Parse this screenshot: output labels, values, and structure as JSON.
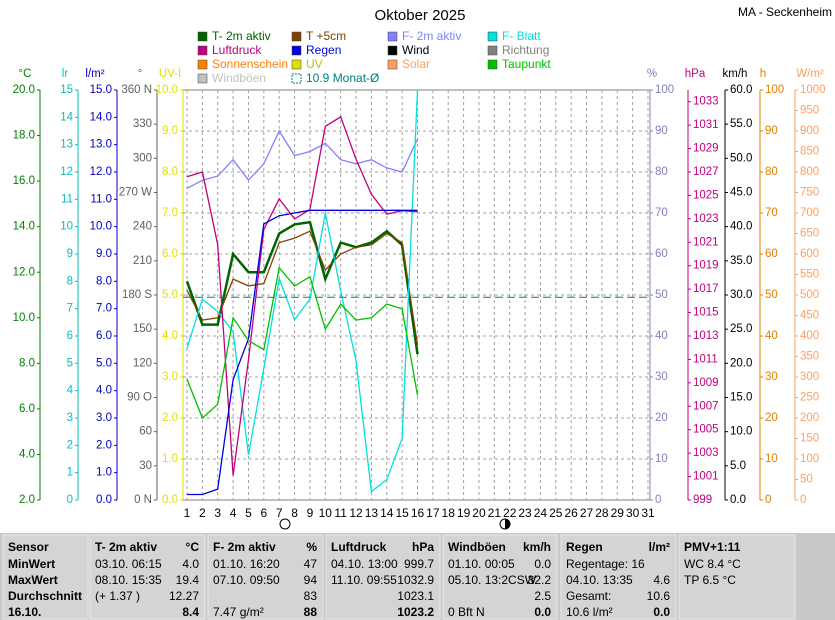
{
  "chart_data": {
    "type": "line",
    "title": "Oktober 2025",
    "subtitle": "MA - Seckenheim",
    "x": [
      1,
      2,
      3,
      4,
      5,
      6,
      7,
      8,
      9,
      10,
      11,
      12,
      13,
      14,
      15,
      16
    ],
    "xlim": [
      1,
      31
    ],
    "xticks": [
      1,
      2,
      3,
      4,
      5,
      6,
      7,
      8,
      9,
      10,
      11,
      12,
      13,
      14,
      15,
      16,
      17,
      18,
      19,
      20,
      21,
      22,
      23,
      24,
      25,
      26,
      27,
      28,
      29,
      30,
      31
    ],
    "grid": true,
    "axes": [
      {
        "label": "°C",
        "color": "#008000",
        "lim": [
          2,
          20
        ],
        "ticks": [
          {
            "value": 2,
            "label": "2.0"
          },
          {
            "value": 4,
            "label": "4.0"
          },
          {
            "value": 6,
            "label": "6.0"
          },
          {
            "value": 8,
            "label": "8.0"
          },
          {
            "value": 10,
            "label": "10.0"
          },
          {
            "value": 12,
            "label": "12.0"
          },
          {
            "value": 14,
            "label": "14.0"
          },
          {
            "value": 16,
            "label": "16.0"
          },
          {
            "value": 18,
            "label": "18.0"
          },
          {
            "value": 20,
            "label": "20.0"
          }
        ]
      },
      {
        "label": "lr",
        "color": "#00c0c0",
        "lim": [
          0,
          15
        ],
        "ticks": [
          0,
          1,
          2,
          3,
          4,
          5,
          6,
          7,
          8,
          9,
          10,
          11,
          12,
          13,
          14,
          15
        ]
      },
      {
        "label": "l/m²",
        "color": "#0000c0",
        "lim": [
          0,
          15
        ],
        "ticks": [
          {
            "value": 0,
            "label": "0.0"
          },
          {
            "value": 1,
            "label": "1.0"
          },
          {
            "value": 2,
            "label": "2.0"
          },
          {
            "value": 3,
            "label": "3.0"
          },
          {
            "value": 4,
            "label": "4.0"
          },
          {
            "value": 5,
            "label": "5.0"
          },
          {
            "value": 6,
            "label": "6.0"
          },
          {
            "value": 7,
            "label": "7.0"
          },
          {
            "value": 8,
            "label": "8.0"
          },
          {
            "value": 9,
            "label": "9.0"
          },
          {
            "value": 10,
            "label": "10.0"
          },
          {
            "value": 11,
            "label": "11.0"
          },
          {
            "value": 12,
            "label": "12.0"
          },
          {
            "value": 13,
            "label": "13.0"
          },
          {
            "value": 14,
            "label": "14.0"
          },
          {
            "value": 15,
            "label": "15.0"
          }
        ]
      },
      {
        "label": "°",
        "color": "#606060",
        "lim": [
          0,
          360
        ],
        "ticks": [
          {
            "value": 0,
            "label": "0 N"
          },
          30,
          60,
          {
            "value": 90,
            "label": "90 O"
          },
          120,
          150,
          {
            "value": 180,
            "label": "180 S"
          },
          210,
          240,
          {
            "value": 270,
            "label": "270 W"
          },
          300,
          330,
          {
            "value": 360,
            "label": "360 N"
          }
        ]
      },
      {
        "label": "UV-I",
        "color": "#e0e000",
        "lim": [
          0,
          10
        ],
        "ticks": [
          {
            "value": 0,
            "label": "0.0"
          },
          {
            "value": 1,
            "label": "1.0"
          },
          {
            "value": 2,
            "label": "2.0"
          },
          {
            "value": 3,
            "label": "3.0"
          },
          {
            "value": 4,
            "label": "4.0"
          },
          {
            "value": 5,
            "label": "5.0"
          },
          {
            "value": 6,
            "label": "6.0"
          },
          {
            "value": 7,
            "label": "7.0"
          },
          {
            "value": 8,
            "label": "8.0"
          },
          {
            "value": 9,
            "label": "9.0"
          },
          {
            "value": 10,
            "label": "10.0"
          }
        ]
      },
      {
        "label": "%",
        "color": "#8080c0",
        "lim": [
          0,
          100
        ],
        "ticks": [
          0,
          10,
          20,
          30,
          40,
          50,
          60,
          70,
          80,
          90,
          100
        ]
      },
      {
        "label": "hPa",
        "color": "#c00080",
        "lim": [
          999,
          1034
        ],
        "ticks": [
          999,
          1001,
          1003,
          1005,
          1007,
          1009,
          1011,
          1013,
          1015,
          1017,
          1019,
          1021,
          1023,
          1025,
          1027,
          1029,
          1031,
          1033
        ]
      },
      {
        "label": "km/h",
        "color": "#000000",
        "lim": [
          0,
          60
        ],
        "ticks": [
          {
            "value": 0,
            "label": "0.0"
          },
          {
            "value": 5,
            "label": "5.0"
          },
          {
            "value": 10,
            "label": "10.0"
          },
          {
            "value": 15,
            "label": "15.0"
          },
          {
            "value": 20,
            "label": "20.0"
          },
          {
            "value": 25,
            "label": "25.0"
          },
          {
            "value": 30,
            "label": "30.0"
          },
          {
            "value": 35,
            "label": "35.0"
          },
          {
            "value": 40,
            "label": "40.0"
          },
          {
            "value": 45,
            "label": "45.0"
          },
          {
            "value": 50,
            "label": "50.0"
          },
          {
            "value": 55,
            "label": "55.0"
          },
          {
            "value": 60,
            "label": "60.0"
          }
        ]
      },
      {
        "label": "h",
        "color": "#e08000",
        "lim": [
          0,
          100
        ],
        "ticks": [
          0,
          10,
          20,
          30,
          40,
          50,
          60,
          70,
          80,
          90,
          100
        ]
      },
      {
        "label": "W/m²",
        "color": "#ffa060",
        "lim": [
          0,
          1000
        ],
        "ticks": [
          0,
          50,
          100,
          150,
          200,
          250,
          300,
          350,
          400,
          450,
          500,
          550,
          600,
          650,
          700,
          750,
          800,
          850,
          900,
          950,
          1000
        ]
      }
    ],
    "series": [
      {
        "name": "T- 2m aktiv",
        "color": "#006400",
        "axis": 0,
        "values": [
          11.6,
          9.7,
          9.7,
          12.8,
          12.0,
          12.0,
          13.7,
          14.1,
          14.2,
          11.7,
          13.3,
          13.1,
          13.3,
          13.8,
          13.2,
          8.4
        ]
      },
      {
        "name": "T +5cm",
        "color": "#804000",
        "axis": 0,
        "values": [
          11.2,
          9.9,
          10.0,
          11.7,
          11.4,
          11.5,
          13.3,
          13.5,
          13.8,
          12.1,
          12.8,
          13.1,
          13.2,
          13.7,
          13.3,
          8.8
        ]
      },
      {
        "name": "F- 2m aktiv",
        "color": "#8080ff",
        "axis": 5,
        "values": [
          76,
          78,
          79,
          83,
          78,
          82,
          90,
          84,
          85,
          87,
          83,
          82,
          83,
          81,
          80,
          88
        ]
      },
      {
        "name": "F- Blatt",
        "color": "#00e0e0",
        "axis": 5,
        "values": [
          37,
          49,
          46,
          41,
          11,
          32,
          54,
          44,
          49,
          70,
          51,
          34,
          2,
          5,
          15,
          100
        ]
      },
      {
        "name": "Luftdruck",
        "color": "#c00080",
        "axis": 6,
        "values": [
          1026.6,
          1027.0,
          1020.8,
          1001.1,
          1011.0,
          1022.1,
          1024.7,
          1023.0,
          1023.8,
          1030.9,
          1031.7,
          1028.1,
          1025.1,
          1023.4,
          1023.7,
          1023.6
        ]
      },
      {
        "name": "Regen",
        "color": "#0000e0",
        "axis": 2,
        "values": [
          0.2,
          0.2,
          0.4,
          4.4,
          5.9,
          10.1,
          10.4,
          10.5,
          10.6,
          10.6,
          10.6,
          10.6,
          10.6,
          10.6,
          10.6,
          10.6
        ]
      },
      {
        "name": "Wind",
        "color": "#000000"
      },
      {
        "name": "Richtung",
        "color": "#808080"
      },
      {
        "name": "Sonnenschein",
        "color": "#ff8000"
      },
      {
        "name": "UV",
        "color": "#e0e000"
      },
      {
        "name": "Solar",
        "color": "#ffa060"
      },
      {
        "name": "Taupunkt",
        "color": "#00c000",
        "axis": 0,
        "values": [
          7.3,
          5.6,
          6.2,
          10.0,
          9.0,
          8.6,
          12.2,
          11.4,
          11.8,
          9.5,
          10.6,
          9.9,
          10.0,
          10.6,
          10.4,
          6.6
        ]
      },
      {
        "name": "Windböen",
        "color": "#c0c0c0"
      },
      {
        "name": "10.9 Monat-Ø",
        "color": "#008080",
        "axis": 0,
        "value": 10.9
      }
    ]
  },
  "table": {
    "columns": [
      {
        "header": "Sensor",
        "rows": [
          {
            "left": "MinWert"
          },
          {
            "left": "MaxWert"
          },
          {
            "left": "Durchschnitt"
          },
          {
            "left": "16.10."
          }
        ]
      },
      {
        "header": "T- 2m aktiv",
        "unit": "°C",
        "rows": [
          {
            "left": "03.10.  06:15",
            "right": "4.0"
          },
          {
            "left": "08.10.  15:35",
            "right": "19.4"
          },
          {
            "left": "(+ 1.37 )",
            "right": "12.27"
          },
          {
            "right": "8.4"
          }
        ]
      },
      {
        "header": "F- 2m aktiv",
        "unit": "%",
        "rows": [
          {
            "left": "01.10.  16:20",
            "right": "47"
          },
          {
            "left": "07.10.  09:50",
            "right": "94"
          },
          {
            "right": "83"
          },
          {
            "left": "7.47 g/m²",
            "right": "88"
          }
        ]
      },
      {
        "header": "Luftdruck",
        "unit": "hPa",
        "rows": [
          {
            "left": "04.10.  13:00",
            "right": "999.7"
          },
          {
            "left": "11.10.  09:55",
            "right": "1032.9"
          },
          {
            "right": "1023.1"
          },
          {
            "right": "1023.2"
          }
        ]
      },
      {
        "header": "Windböen",
        "unit": "km/h",
        "rows": [
          {
            "left": "01.10.  00:05",
            "right": "0.0"
          },
          {
            "left": "05.10.  13:2CSW",
            "right": "32.2"
          },
          {
            "right": "2.5"
          },
          {
            "left": "0 Bft N",
            "right": "0.0"
          }
        ]
      },
      {
        "header": "Regen",
        "unit": "l/m²",
        "rows": [
          {
            "left": "Regentage: 16"
          },
          {
            "left": "04.10.  13:35",
            "right": "4.6"
          },
          {
            "left": "Gesamt:",
            "right": "10.6"
          },
          {
            "left": "10.6 l/m²",
            "right": "0.0"
          }
        ]
      },
      {
        "header": "PMV+1:11",
        "rows": [
          {
            "left": "WC 8.4 °C"
          },
          {
            "left": "TP 6.5 °C"
          }
        ]
      }
    ]
  }
}
